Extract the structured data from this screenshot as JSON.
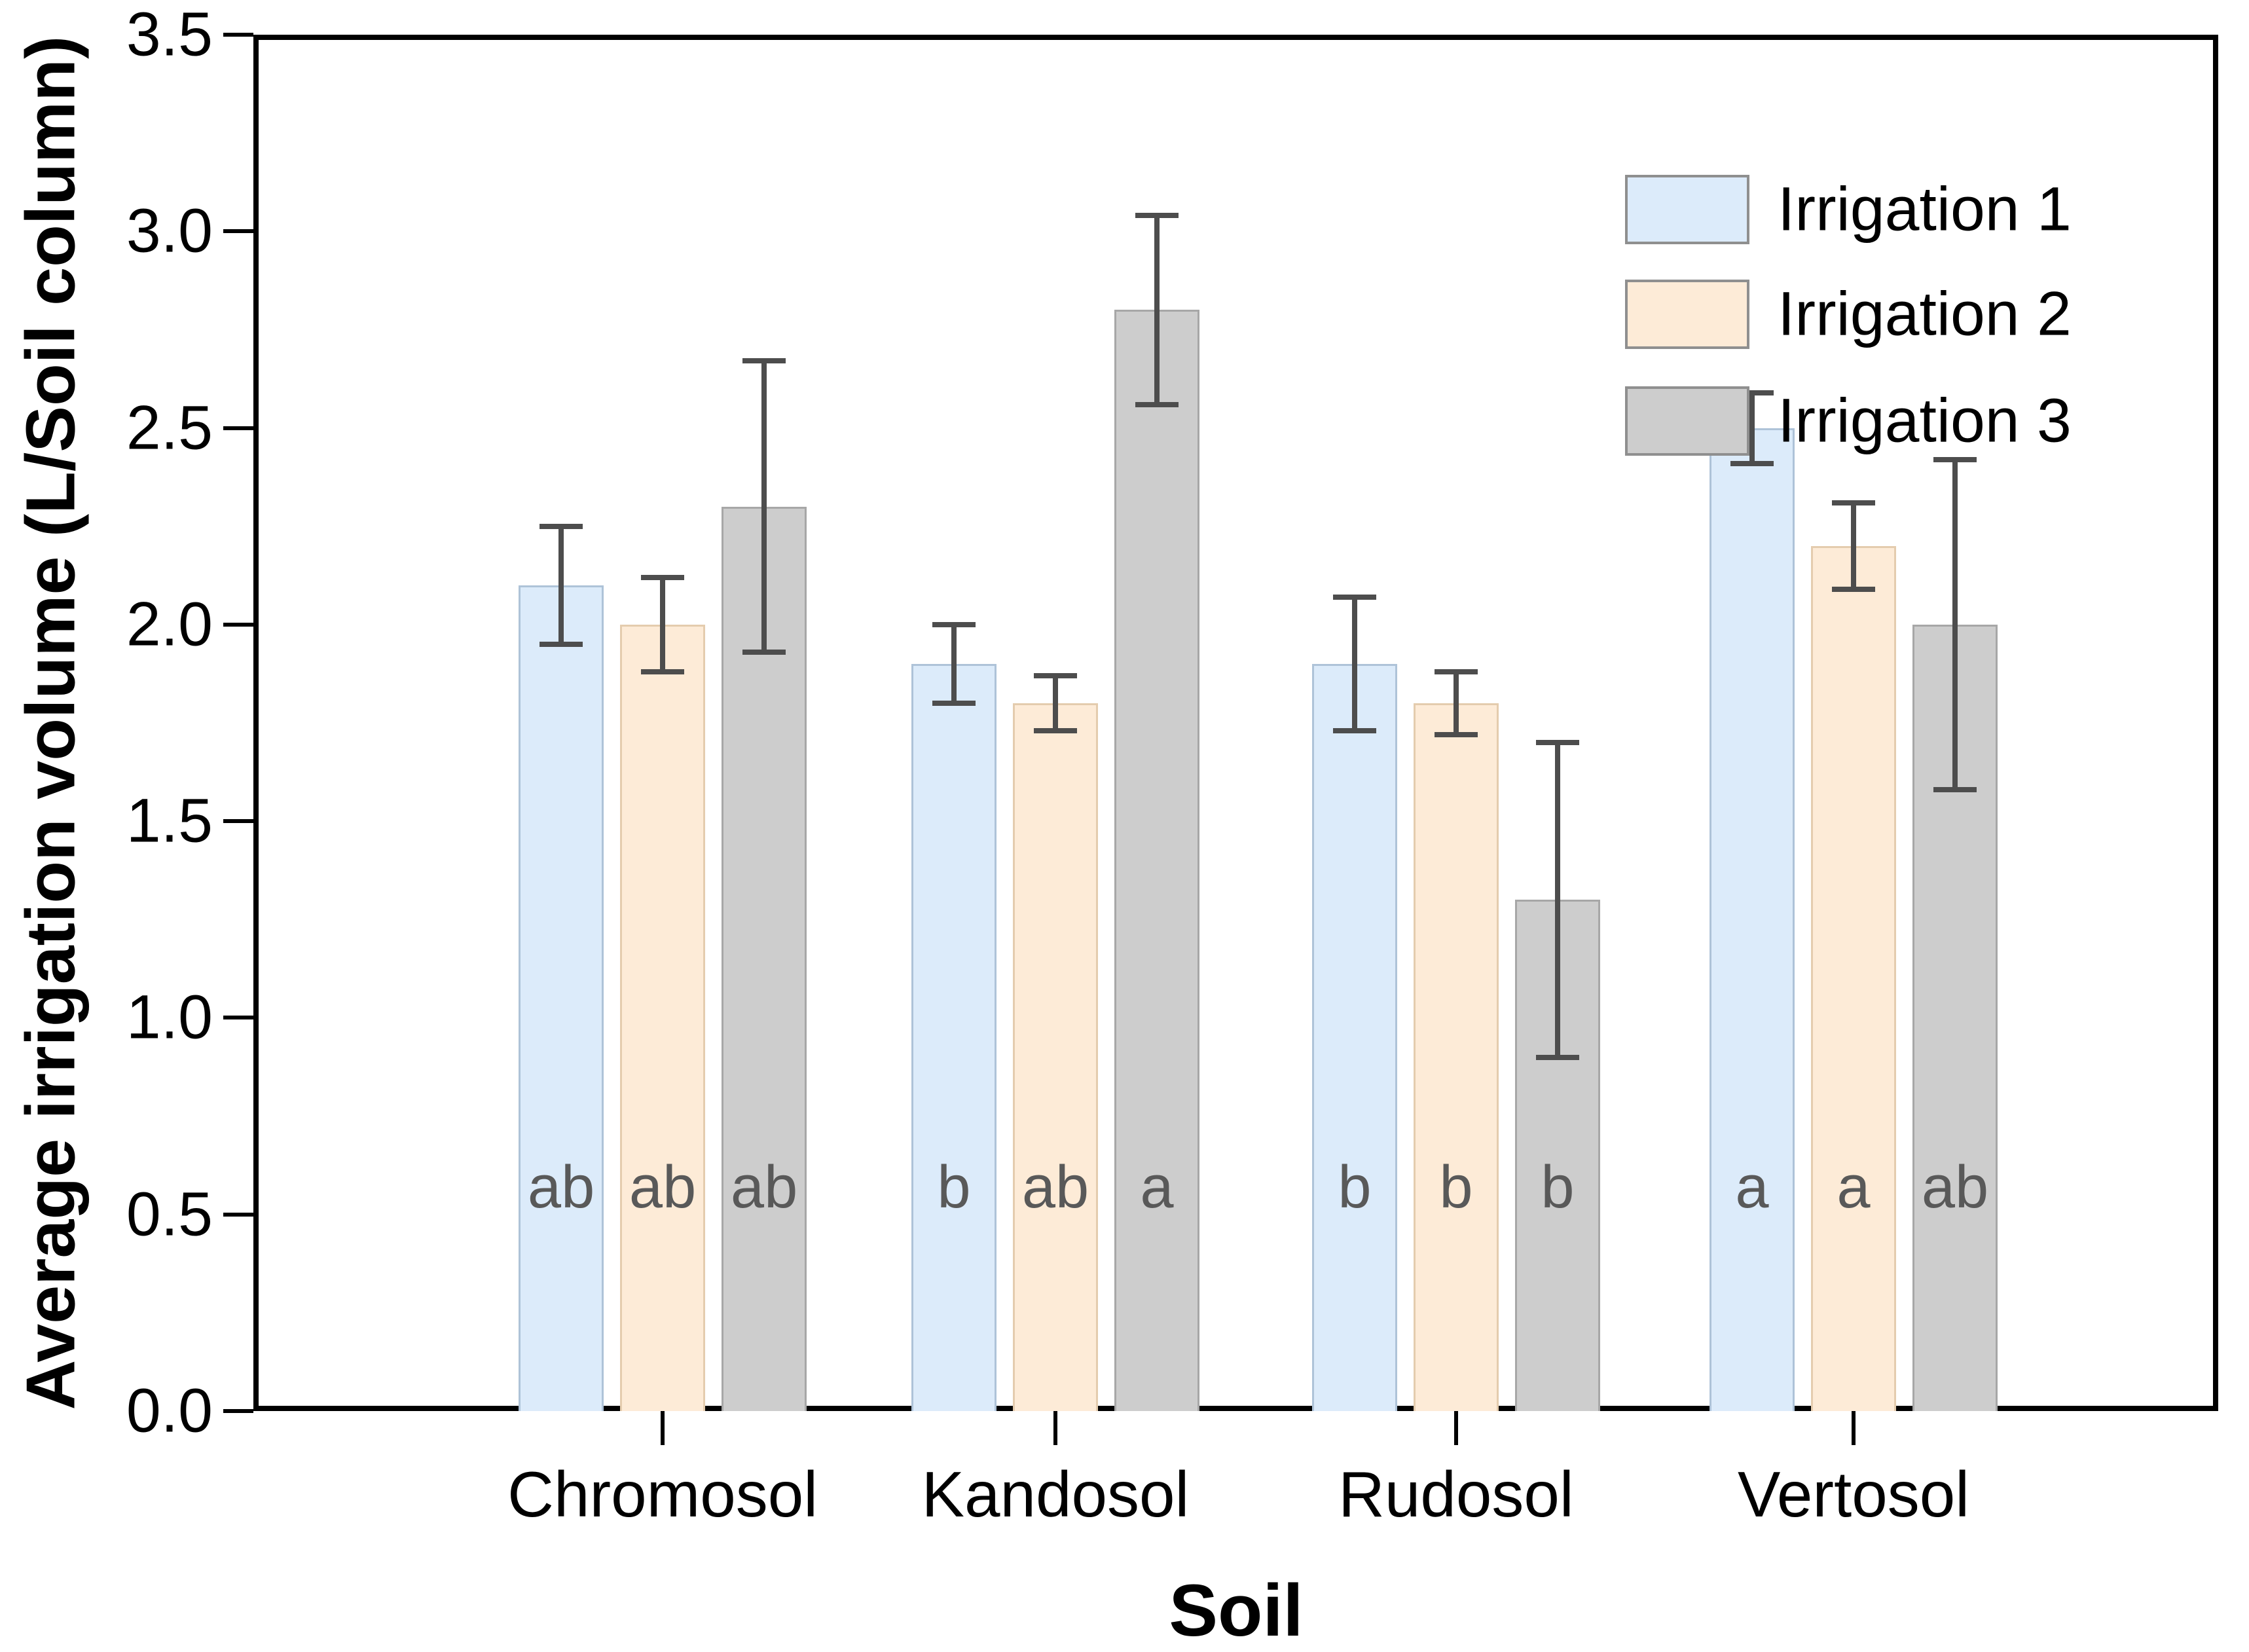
{
  "page": {
    "background": "#ffffff"
  },
  "chart_data": {
    "type": "bar",
    "title": "",
    "xlabel": "Soil",
    "ylabel": "Average irrigation volume (L/Soil column)",
    "ylim": [
      0,
      3.5
    ],
    "y_tick_labels": [
      "0.0",
      "0.5",
      "1.0",
      "1.5",
      "2.0",
      "2.5",
      "3.0",
      "3.5"
    ],
    "grid": false,
    "frame": "full-box",
    "legend_position": "top-right-inside",
    "categories": [
      "Chromosol",
      "Kandosol",
      "Rudosol",
      "Vertosol"
    ],
    "series": [
      {
        "name": "Irrigation 1",
        "fill": "#dcebfa",
        "border": "#aec3d8",
        "values": [
          2.1,
          1.9,
          1.9,
          2.5
        ],
        "errors": [
          0.15,
          0.1,
          0.17,
          0.09
        ]
      },
      {
        "name": "Irrigation 2",
        "fill": "#fdebd7",
        "border": "#e4ccae",
        "values": [
          2.0,
          1.8,
          1.8,
          2.2
        ],
        "errors": [
          0.12,
          0.07,
          0.08,
          0.11
        ]
      },
      {
        "name": "Irrigation 3",
        "fill": "#cdcdcd",
        "border": "#a7a7a7",
        "values": [
          2.3,
          2.8,
          1.3,
          2.0
        ],
        "errors": [
          0.37,
          0.24,
          0.4,
          0.42
        ]
      }
    ],
    "significance_letters": [
      [
        "ab",
        "ab",
        "ab"
      ],
      [
        "b",
        "ab",
        "a"
      ],
      [
        "b",
        "b",
        "b"
      ],
      [
        "a",
        "a",
        "ab"
      ]
    ],
    "error_bar_color": "#4d4d4d",
    "letter_color": "#595959",
    "letter_value_height": 0.57
  }
}
